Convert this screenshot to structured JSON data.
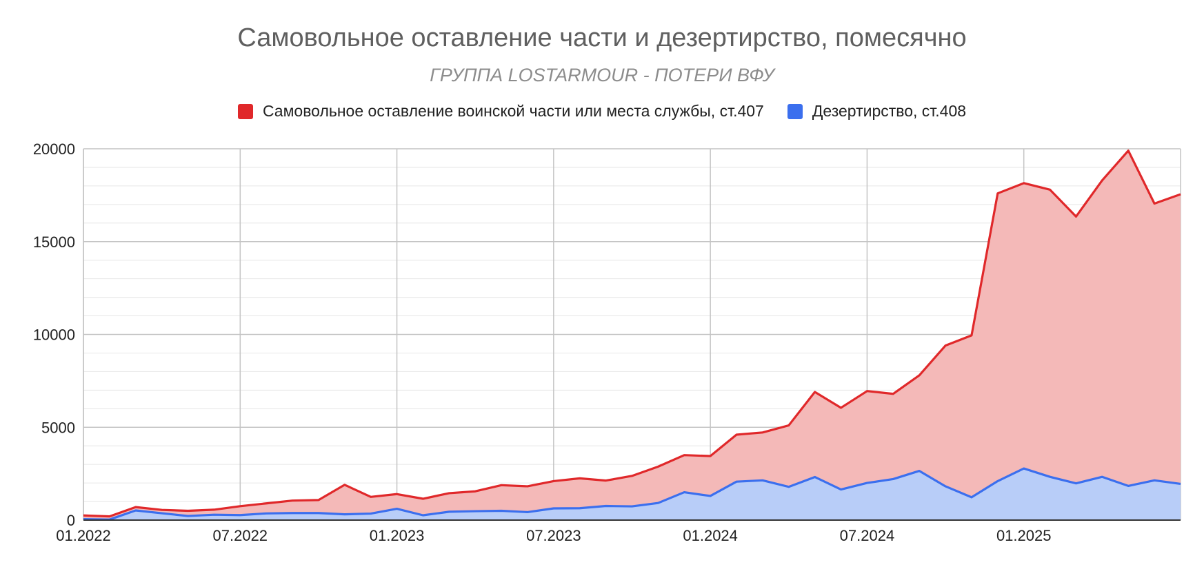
{
  "chart_data": {
    "type": "area",
    "title": "Самовольное оставление части и дезертирство, помесячно",
    "subtitle": "ГРУППА LOSTARMOUR - ПОТЕРИ ВФУ",
    "xlabel": "",
    "ylabel": "",
    "legend_position": "top",
    "grid": true,
    "stacked": false,
    "ylim": [
      0,
      20000
    ],
    "y_ticks": [
      "0",
      "5000",
      "10000",
      "15000",
      "20000"
    ],
    "x_tick_labels": [
      "01.2022",
      "07.2022",
      "01.2023",
      "07.2023",
      "01.2024",
      "07.2024",
      "01.2025"
    ],
    "x": [
      "01.2022",
      "02.2022",
      "03.2022",
      "04.2022",
      "05.2022",
      "06.2022",
      "07.2022",
      "08.2022",
      "09.2022",
      "10.2022",
      "11.2022",
      "12.2022",
      "01.2023",
      "02.2023",
      "03.2023",
      "04.2023",
      "05.2023",
      "06.2023",
      "07.2023",
      "08.2023",
      "09.2023",
      "10.2023",
      "11.2023",
      "12.2023",
      "01.2024",
      "02.2024",
      "03.2024",
      "04.2024",
      "05.2024",
      "06.2024",
      "07.2024",
      "08.2024",
      "09.2024",
      "10.2024",
      "11.2024",
      "12.2024",
      "01.2025",
      "02.2025",
      "03.2025",
      "04.2025",
      "05.2025",
      "06.2025",
      "07.2025"
    ],
    "series": [
      {
        "name": "Самовольное оставление воинской части или места службы, ст.407",
        "color": "#e0282a",
        "fill": "#f4b9b8",
        "values": [
          250,
          200,
          700,
          550,
          500,
          560,
          750,
          900,
          1050,
          1080,
          1900,
          1250,
          1400,
          1150,
          1450,
          1550,
          1880,
          1820,
          2100,
          2250,
          2130,
          2380,
          2880,
          3500,
          3450,
          4600,
          4720,
          5100,
          6900,
          6050,
          6950,
          6800,
          7800,
          9400,
          9950,
          17600,
          18150,
          17800,
          16350,
          18300,
          19900,
          17050,
          17550
        ]
      },
      {
        "name": "Дезертирство, ст.408",
        "color": "#3b6fee",
        "fill": "#b8cdf8",
        "values": [
          50,
          30,
          520,
          370,
          220,
          290,
          270,
          360,
          380,
          380,
          310,
          350,
          610,
          260,
          450,
          480,
          500,
          430,
          630,
          640,
          760,
          740,
          920,
          1500,
          1300,
          2070,
          2140,
          1790,
          2320,
          1650,
          2000,
          2210,
          2650,
          1820,
          1230,
          2100,
          2780,
          2330,
          1980,
          2330,
          1840,
          2140,
          1950
        ]
      }
    ]
  }
}
